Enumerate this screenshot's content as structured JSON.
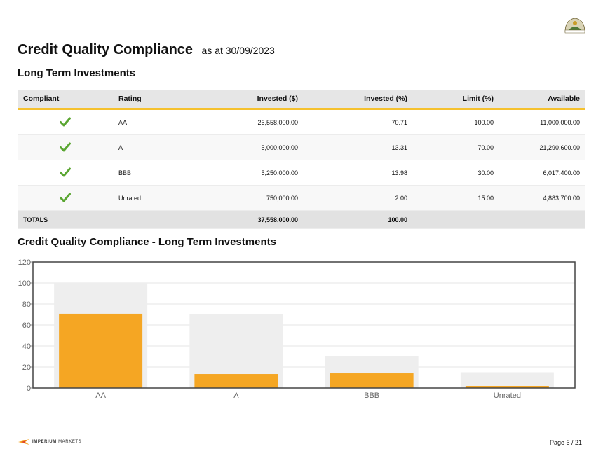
{
  "header": {
    "title": "Credit Quality Compliance",
    "as_at": "as at 30/09/2023"
  },
  "section": {
    "title": "Long Term Investments"
  },
  "table": {
    "columns": [
      "Compliant",
      "Rating",
      "Invested ($)",
      "Invested (%)",
      "Limit (%)",
      "Available"
    ],
    "rows": [
      {
        "compliant": true,
        "rating": "AA",
        "invested": "26,558,000.00",
        "invested_pct": "70.71",
        "limit": "100.00",
        "available": "11,000,000.00"
      },
      {
        "compliant": true,
        "rating": "A",
        "invested": "5,000,000.00",
        "invested_pct": "13.31",
        "limit": "70.00",
        "available": "21,290,600.00"
      },
      {
        "compliant": true,
        "rating": "BBB",
        "invested": "5,250,000.00",
        "invested_pct": "13.98",
        "limit": "30.00",
        "available": "6,017,400.00"
      },
      {
        "compliant": true,
        "rating": "Unrated",
        "invested": "750,000.00",
        "invested_pct": "2.00",
        "limit": "15.00",
        "available": "4,883,700.00"
      }
    ],
    "totals": {
      "label": "TOTALS",
      "invested": "37,558,000.00",
      "invested_pct": "100.00"
    }
  },
  "chart_title": "Credit Quality Compliance - Long Term Investments",
  "chart_data": {
    "type": "bar",
    "categories": [
      "AA",
      "A",
      "BBB",
      "Unrated"
    ],
    "series": [
      {
        "values": [
          100,
          70,
          30,
          15
        ],
        "color": "#eeeeee"
      },
      {
        "values": [
          70.71,
          13.31,
          13.98,
          2.0
        ],
        "color": "#f5a623"
      }
    ],
    "yticks": [
      0,
      20,
      40,
      60,
      80,
      100,
      120
    ],
    "ylim": [
      0,
      120
    ],
    "grid": true
  },
  "footer": {
    "brand_bold": "IMPERIUM",
    "brand_rest": " MARKETS",
    "page": "Page 6 / 21"
  },
  "colors": {
    "accent": "#f5c12e",
    "bar": "#f5a623",
    "limit_bar": "#eeeeee",
    "check": "#5aa632"
  },
  "icons": {
    "compliant": "check-icon"
  }
}
